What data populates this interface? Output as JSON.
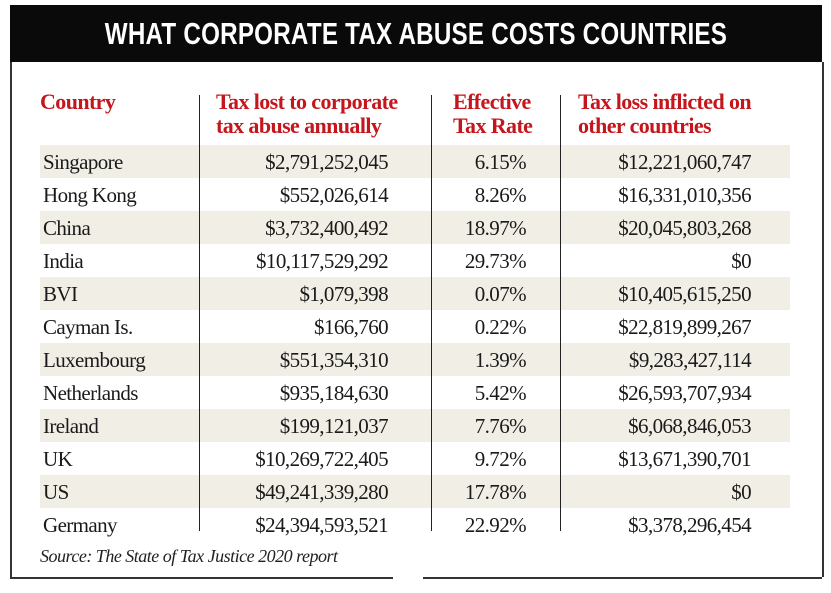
{
  "chart_data": {
    "type": "table",
    "title": "WHAT CORPORATE TAX ABUSE COSTS COUNTRIES",
    "columns": [
      "Country",
      "Tax lost to corporate tax abuse annually",
      "Effective Tax Rate",
      "Tax loss inflicted on other countries"
    ],
    "rows": [
      [
        "Singapore",
        "$2,791,252,045",
        "6.15%",
        "$12,221,060,747"
      ],
      [
        "Hong Kong",
        "$552,026,614",
        "8.26%",
        "$16,331,010,356"
      ],
      [
        "China",
        "$3,732,400,492",
        "18.97%",
        "$20,045,803,268"
      ],
      [
        "India",
        "$10,117,529,292",
        "29.73%",
        "$0"
      ],
      [
        "BVI",
        "$1,079,398",
        "0.07%",
        "$10,405,615,250"
      ],
      [
        "Cayman Is.",
        "$166,760",
        "0.22%",
        "$22,819,899,267"
      ],
      [
        "Luxembourg",
        "$551,354,310",
        "1.39%",
        "$9,283,427,114"
      ],
      [
        "Netherlands",
        "$935,184,630",
        "5.42%",
        "$26,593,707,934"
      ],
      [
        "Ireland",
        "$199,121,037",
        "7.76%",
        "$6,068,846,053"
      ],
      [
        "UK",
        "$10,269,722,405",
        "9.72%",
        "$13,671,390,701"
      ],
      [
        "US",
        "$49,241,339,280",
        "17.78%",
        "$0"
      ],
      [
        "Germany",
        "$24,394,593,521",
        "22.92%",
        "$3,378,296,454"
      ]
    ],
    "source": "Source: The State of Tax Justice 2020 report",
    "header_color": "#c4161c",
    "title_bar_color": "#0a0a0a",
    "stripe_color": "#f1eee6"
  },
  "headers": [
    [
      "Country"
    ],
    [
      "Tax lost to corporate",
      "tax abuse annually"
    ],
    [
      "Effective",
      "Tax Rate"
    ],
    [
      "Tax loss inflicted on",
      "other countries"
    ]
  ]
}
